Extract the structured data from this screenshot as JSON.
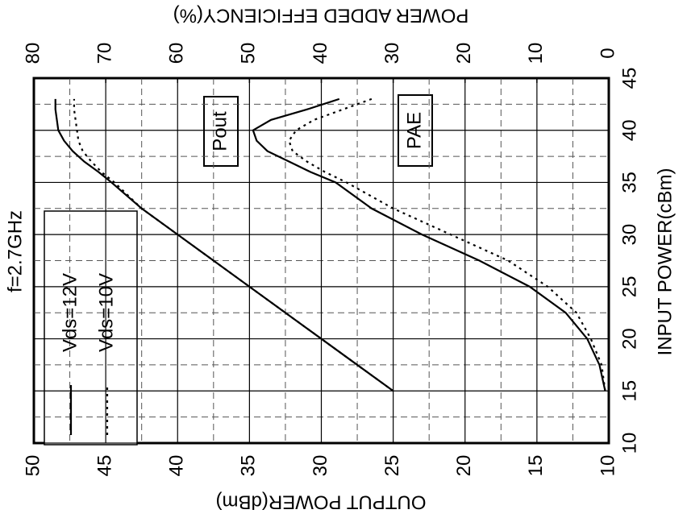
{
  "chart_data": {
    "type": "line",
    "xlabel": "INPUT POWER(cBm)",
    "ylabel": "OUTPUT POWER(dBm)",
    "y2label": "POWER ADDED EFFICIENCY(%)",
    "annotations": [
      "f=2.7GHz",
      "Pout",
      "PAE"
    ],
    "xlim": [
      10,
      45
    ],
    "xticks": [
      10,
      15,
      20,
      25,
      30,
      35,
      40,
      45
    ],
    "ylim": [
      10,
      50
    ],
    "yticks": [
      10,
      15,
      20,
      25,
      30,
      35,
      40,
      45,
      50
    ],
    "y2lim": [
      0,
      80
    ],
    "y2ticks": [
      0,
      10,
      20,
      30,
      40,
      50,
      60,
      70,
      80
    ],
    "grid": true,
    "x": [
      15,
      17.5,
      20,
      22.5,
      25,
      27.5,
      30,
      32.5,
      35,
      36,
      37,
      38,
      39,
      40,
      41,
      42,
      43
    ],
    "series": [
      {
        "name": "Vds=12V",
        "color": "#000000",
        "dash": "solid",
        "pout": [
          25,
          27.5,
          30,
          32.5,
          35,
          37.5,
          40,
          42.5,
          44.6,
          45.5,
          46.5,
          47.3,
          47.9,
          48.3,
          48.4,
          48.5,
          48.5
        ],
        "pae": [
          0.5,
          1.3,
          3,
          6,
          11,
          18,
          26,
          33,
          38,
          41.5,
          44.5,
          47.5,
          49,
          49.5,
          47,
          42,
          37.5
        ]
      },
      {
        "name": "Vds=10V",
        "color": "#000000",
        "dash": "dotted",
        "pout": [
          25,
          27.5,
          30,
          32.5,
          35,
          37.5,
          40,
          42.5,
          44.4,
          45.3,
          46,
          46.6,
          46.9,
          47.0,
          47.1,
          47.2,
          47.2
        ],
        "pae": [
          0.5,
          1,
          2.5,
          4.5,
          8.5,
          14,
          22,
          30,
          36.5,
          39.5,
          42,
          44,
          44.5,
          43.5,
          41,
          37,
          33
        ]
      }
    ]
  }
}
